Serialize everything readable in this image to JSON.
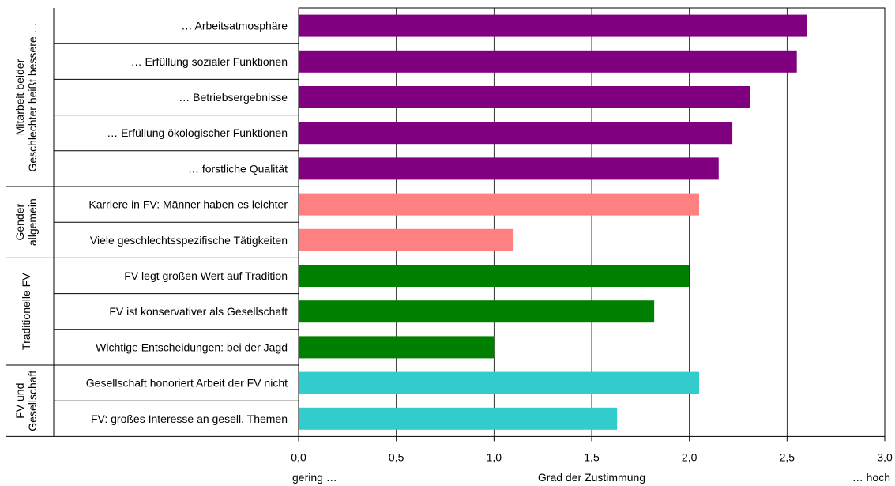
{
  "chart_data": {
    "type": "bar",
    "orientation": "horizontal",
    "xlim": [
      0,
      3
    ],
    "x_ticks": [
      "0,0",
      "0,5",
      "1,0",
      "1,5",
      "2,0",
      "2,5",
      "3,0"
    ],
    "x_tick_values": [
      0,
      0.5,
      1,
      1.5,
      2,
      2.5,
      3
    ],
    "grid": "vertical",
    "xlabel": "Grad der Zustimmung",
    "xlabel_left": "gering …",
    "xlabel_right": "… hoch",
    "groups": [
      {
        "label_lines": [
          "Mitarbeit beider",
          "Geschlechter heißt bessere …"
        ],
        "color": "#800080",
        "items": [
          {
            "label": "… Arbeitsatmosphäre",
            "value": 2.6
          },
          {
            "label": "… Erfüllung sozialer Funktionen",
            "value": 2.55
          },
          {
            "label": "… Betriebsergebnisse",
            "value": 2.31
          },
          {
            "label": "… Erfüllung ökologischer Funktionen",
            "value": 2.22
          },
          {
            "label": "… forstliche Qualität",
            "value": 2.15
          }
        ]
      },
      {
        "label_lines": [
          "Gender",
          "allgemein"
        ],
        "color": "#FF8080",
        "items": [
          {
            "label": "Karriere in FV: Männer haben es leichter",
            "value": 2.05
          },
          {
            "label": "Viele geschlechtsspezifische Tätigkeiten",
            "value": 1.1
          }
        ]
      },
      {
        "label_lines": [
          "Traditionelle FV"
        ],
        "color": "#008000",
        "items": [
          {
            "label": "FV legt großen Wert auf Tradition",
            "value": 2.0
          },
          {
            "label": "FV ist konservativer als Gesellschaft",
            "value": 1.82
          },
          {
            "label": "Wichtige Entscheidungen: bei der Jagd",
            "value": 1.0
          }
        ]
      },
      {
        "label_lines": [
          "FV und",
          "Gesellschaft"
        ],
        "color": "#33CCCC",
        "items": [
          {
            "label": "Gesellschaft honoriert Arbeit der FV nicht",
            "value": 2.05
          },
          {
            "label": "FV: großes Interesse an gesell. Themen",
            "value": 1.63
          }
        ]
      }
    ]
  }
}
